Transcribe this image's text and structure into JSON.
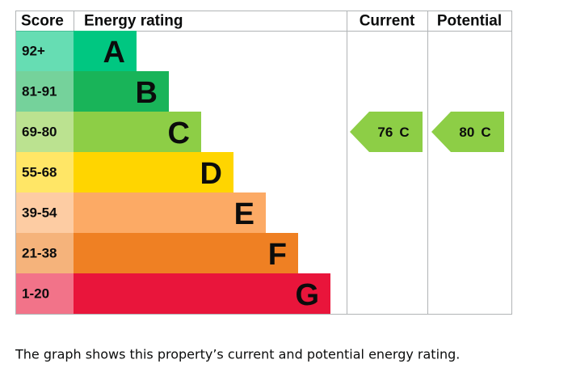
{
  "header": {
    "score": "Score",
    "rating": "Energy rating",
    "current": "Current",
    "potential": "Potential"
  },
  "bands": [
    {
      "score": "92+",
      "letter": "A",
      "color": "#00c781"
    },
    {
      "score": "81-91",
      "letter": "B",
      "color": "#19b459"
    },
    {
      "score": "69-80",
      "letter": "C",
      "color": "#8dce46"
    },
    {
      "score": "55-68",
      "letter": "D",
      "color": "#ffd500"
    },
    {
      "score": "39-54",
      "letter": "E",
      "color": "#fcaa65"
    },
    {
      "score": "21-38",
      "letter": "F",
      "color": "#ef8023"
    },
    {
      "score": "1-20",
      "letter": "G",
      "color": "#e9153b"
    }
  ],
  "current": {
    "score": 76,
    "letter": "C"
  },
  "potential": {
    "score": 80,
    "letter": "C"
  },
  "caption": "The graph shows this property’s current and potential energy rating."
}
